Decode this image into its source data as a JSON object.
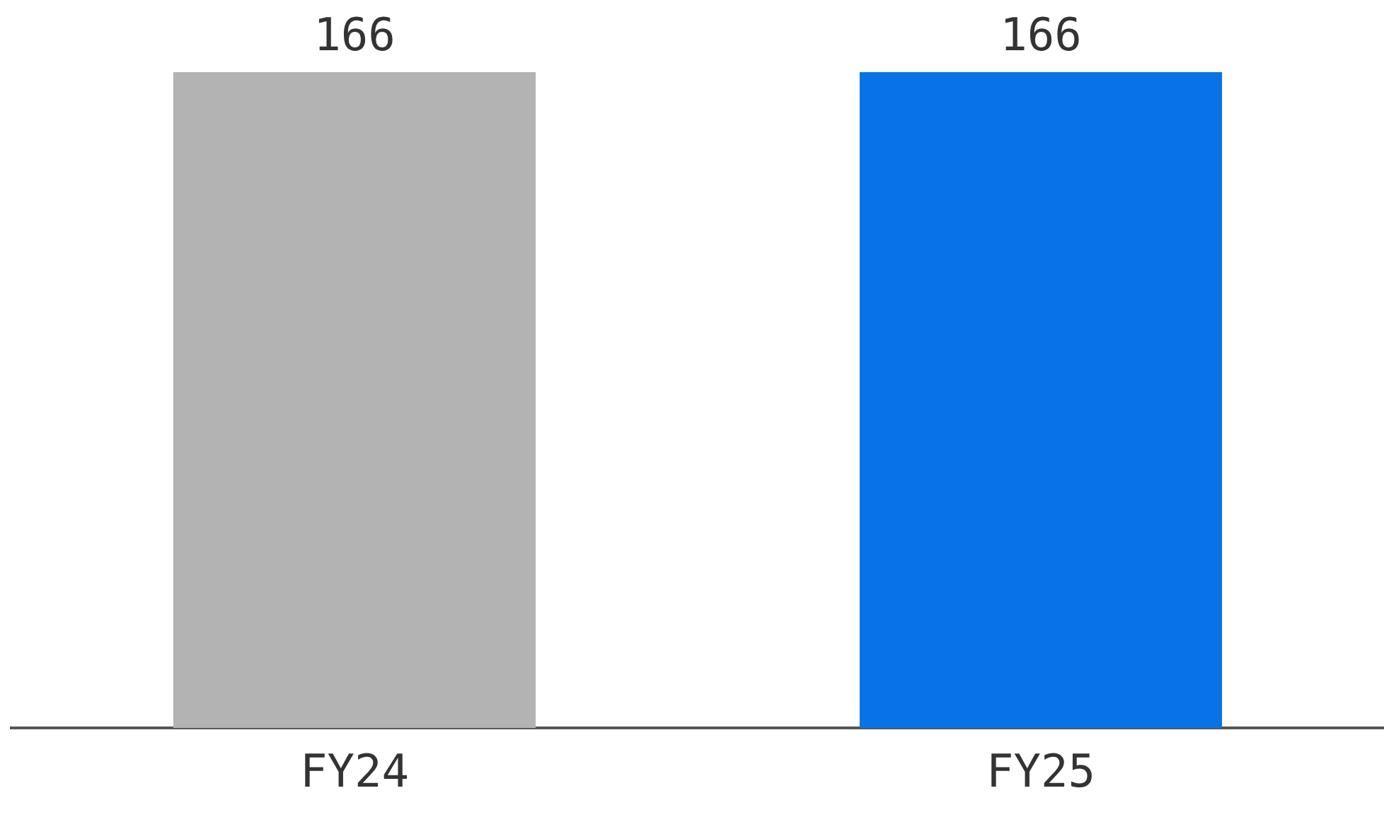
{
  "chart_data": {
    "type": "bar",
    "categories": [
      "FY24",
      "FY25"
    ],
    "values": [
      166,
      166
    ],
    "colors": [
      "#b3b3b3",
      "#0873e6"
    ],
    "data_labels": true,
    "relative": false,
    "grid": false,
    "legend": false
  }
}
